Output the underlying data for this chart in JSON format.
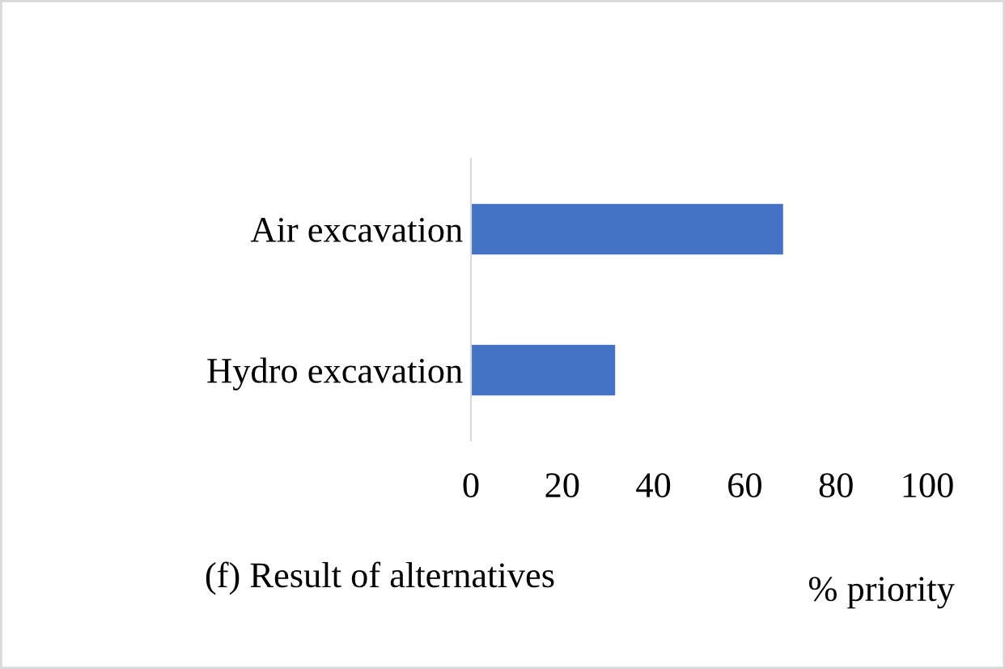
{
  "chart_data": {
    "type": "bar",
    "orientation": "horizontal",
    "categories": [
      "Air excavation",
      "Hydro excavation"
    ],
    "values": [
      68.4,
      31.6
    ],
    "color": "#4472c4",
    "xlim": [
      0,
      100
    ],
    "xticks": [
      0,
      20,
      40,
      60,
      80,
      100
    ],
    "xlabel": "% priority",
    "annotations": [
      "(f) Result of alternatives"
    ],
    "grid": false,
    "legend": false
  }
}
